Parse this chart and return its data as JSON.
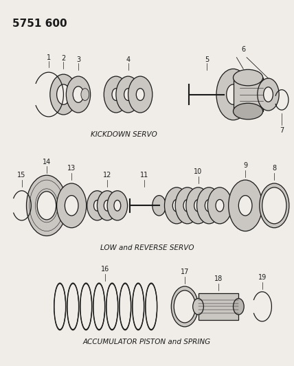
{
  "title": "5751 600",
  "bg_color": "#f0ede8",
  "line_color": "#1a1a1a",
  "section1_label": "KICKDOWN SERVO",
  "section2_label": "LOW and REVERSE SERVO",
  "section3_label": "ACCUMULATOR PISTON and SPRING",
  "figw": 4.28,
  "figh": 5.33,
  "dpi": 100
}
